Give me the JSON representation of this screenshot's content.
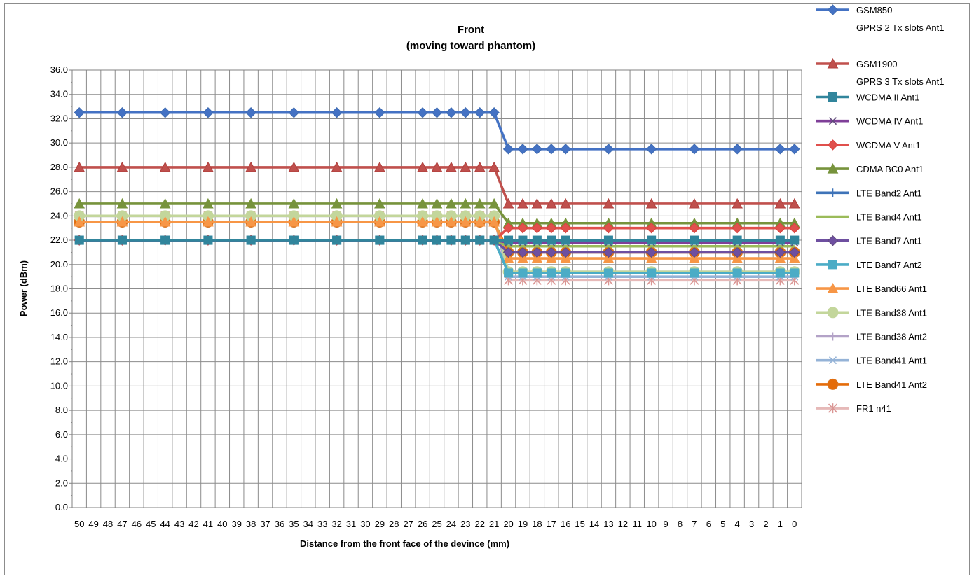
{
  "chart_data": {
    "type": "line",
    "title": "Front",
    "subtitle": "(moving toward phantom)",
    "xlabel": "Distance from the front face of the devince (mm)",
    "ylabel": "Power (dBm)",
    "ylim": [
      0,
      36
    ],
    "ytick_step": 2,
    "ytick_labels": [
      "0.0",
      "2.0",
      "4.0",
      "6.0",
      "8.0",
      "10.0",
      "12.0",
      "14.0",
      "16.0",
      "18.0",
      "20.0",
      "22.0",
      "24.0",
      "26.0",
      "28.0",
      "30.0",
      "32.0",
      "34.0",
      "36.0"
    ],
    "x_categories": [
      "50",
      "49",
      "48",
      "47",
      "46",
      "45",
      "44",
      "43",
      "42",
      "41",
      "40",
      "39",
      "38",
      "37",
      "36",
      "35",
      "34",
      "33",
      "32",
      "31",
      "30",
      "29",
      "28",
      "27",
      "26",
      "25",
      "24",
      "23",
      "22",
      "21",
      "20",
      "19",
      "18",
      "17",
      "16",
      "15",
      "14",
      "13",
      "12",
      "11",
      "10",
      "9",
      "8",
      "7",
      "6",
      "5",
      "4",
      "3",
      "2",
      "1",
      "0"
    ],
    "grid": true,
    "legend_position": "right",
    "marker_x": [
      "50",
      "47",
      "44",
      "41",
      "38",
      "35",
      "32",
      "29",
      "26",
      "25",
      "24",
      "23",
      "22",
      "21",
      "20",
      "19",
      "18",
      "17",
      "16",
      "13",
      "10",
      "7",
      "4",
      "1",
      "0"
    ],
    "series": [
      {
        "name": "GSM850",
        "name2": "GPRS 2 Tx slots Ant1",
        "color": "#4472C4",
        "stroke": "#3F6BB0",
        "marker": "diamond",
        "before": 32.5,
        "after": 29.5
      },
      {
        "name": "GSM1900",
        "name2": "GPRS 3 Tx slots Ant1",
        "color": "#C0504D",
        "stroke": "#B0413E",
        "marker": "triangle",
        "before": 28.0,
        "after": 25.0
      },
      {
        "name": "WCDMA II Ant1",
        "color": "#31859C",
        "stroke": "#31859C",
        "marker": "square",
        "before": 22.0,
        "after": 22.0
      },
      {
        "name": "WCDMA IV Ant1",
        "color": "#7F3F98",
        "stroke": "#604A7B",
        "marker": "x",
        "before": 22.0,
        "after": 21.8
      },
      {
        "name": "WCDMA V Ant1",
        "color": "#E0504D",
        "stroke": "#D9413E",
        "marker": "diamond",
        "before": 22.0,
        "after": 23.0
      },
      {
        "name": "CDMA BC0 Ant1",
        "color": "#77933C",
        "stroke": "#77933C",
        "marker": "triangle",
        "before": 25.0,
        "after": 23.4
      },
      {
        "name": "LTE Band2 Ant1",
        "color": "#3E73B8",
        "stroke": "#3E73B8",
        "marker": "plus",
        "before": 22.0,
        "after": 22.0
      },
      {
        "name": "LTE Band4 Ant1",
        "color": "#9BBB59",
        "stroke": "#9BBB59",
        "marker": "none",
        "before": 22.0,
        "after": 21.5
      },
      {
        "name": "LTE Band7 Ant1",
        "color": "#6E4FA0",
        "stroke": "#604A7B",
        "marker": "diamond",
        "before": 22.0,
        "after": 21.0
      },
      {
        "name": "LTE Band7 Ant2",
        "color": "#4BACC6",
        "stroke": "#4BACC6",
        "marker": "square",
        "before": 22.0,
        "after": 19.3
      },
      {
        "name": "LTE Band66 Ant1",
        "color": "#F79646",
        "stroke": "#F79646",
        "marker": "triangle",
        "before": 23.5,
        "after": 20.5
      },
      {
        "name": "LTE Band38 Ant1",
        "color": "#C3D69B",
        "stroke": "#C3D69B",
        "marker": "circle",
        "before": 24.0,
        "after": 19.4
      },
      {
        "name": "LTE Band38 Ant2",
        "color": "#B3A2C7",
        "stroke": "#B3A2C7",
        "marker": "plus",
        "before": 22.0,
        "after": 19.4
      },
      {
        "name": "LTE Band41 Ant1",
        "color": "#95B3D7",
        "stroke": "#95B3D7",
        "marker": "x",
        "before": 24.0,
        "after": 19.0
      },
      {
        "name": "LTE Band41 Ant2",
        "color": "#E46C0A",
        "stroke": "#D67A2E",
        "marker": "circle",
        "before": 23.5,
        "after": 21.0
      },
      {
        "name": "FR1 n41",
        "color": "#E6B9B8",
        "stroke": "#DA9694",
        "marker": "asterisk",
        "before": 24.0,
        "after": 18.7
      }
    ]
  }
}
